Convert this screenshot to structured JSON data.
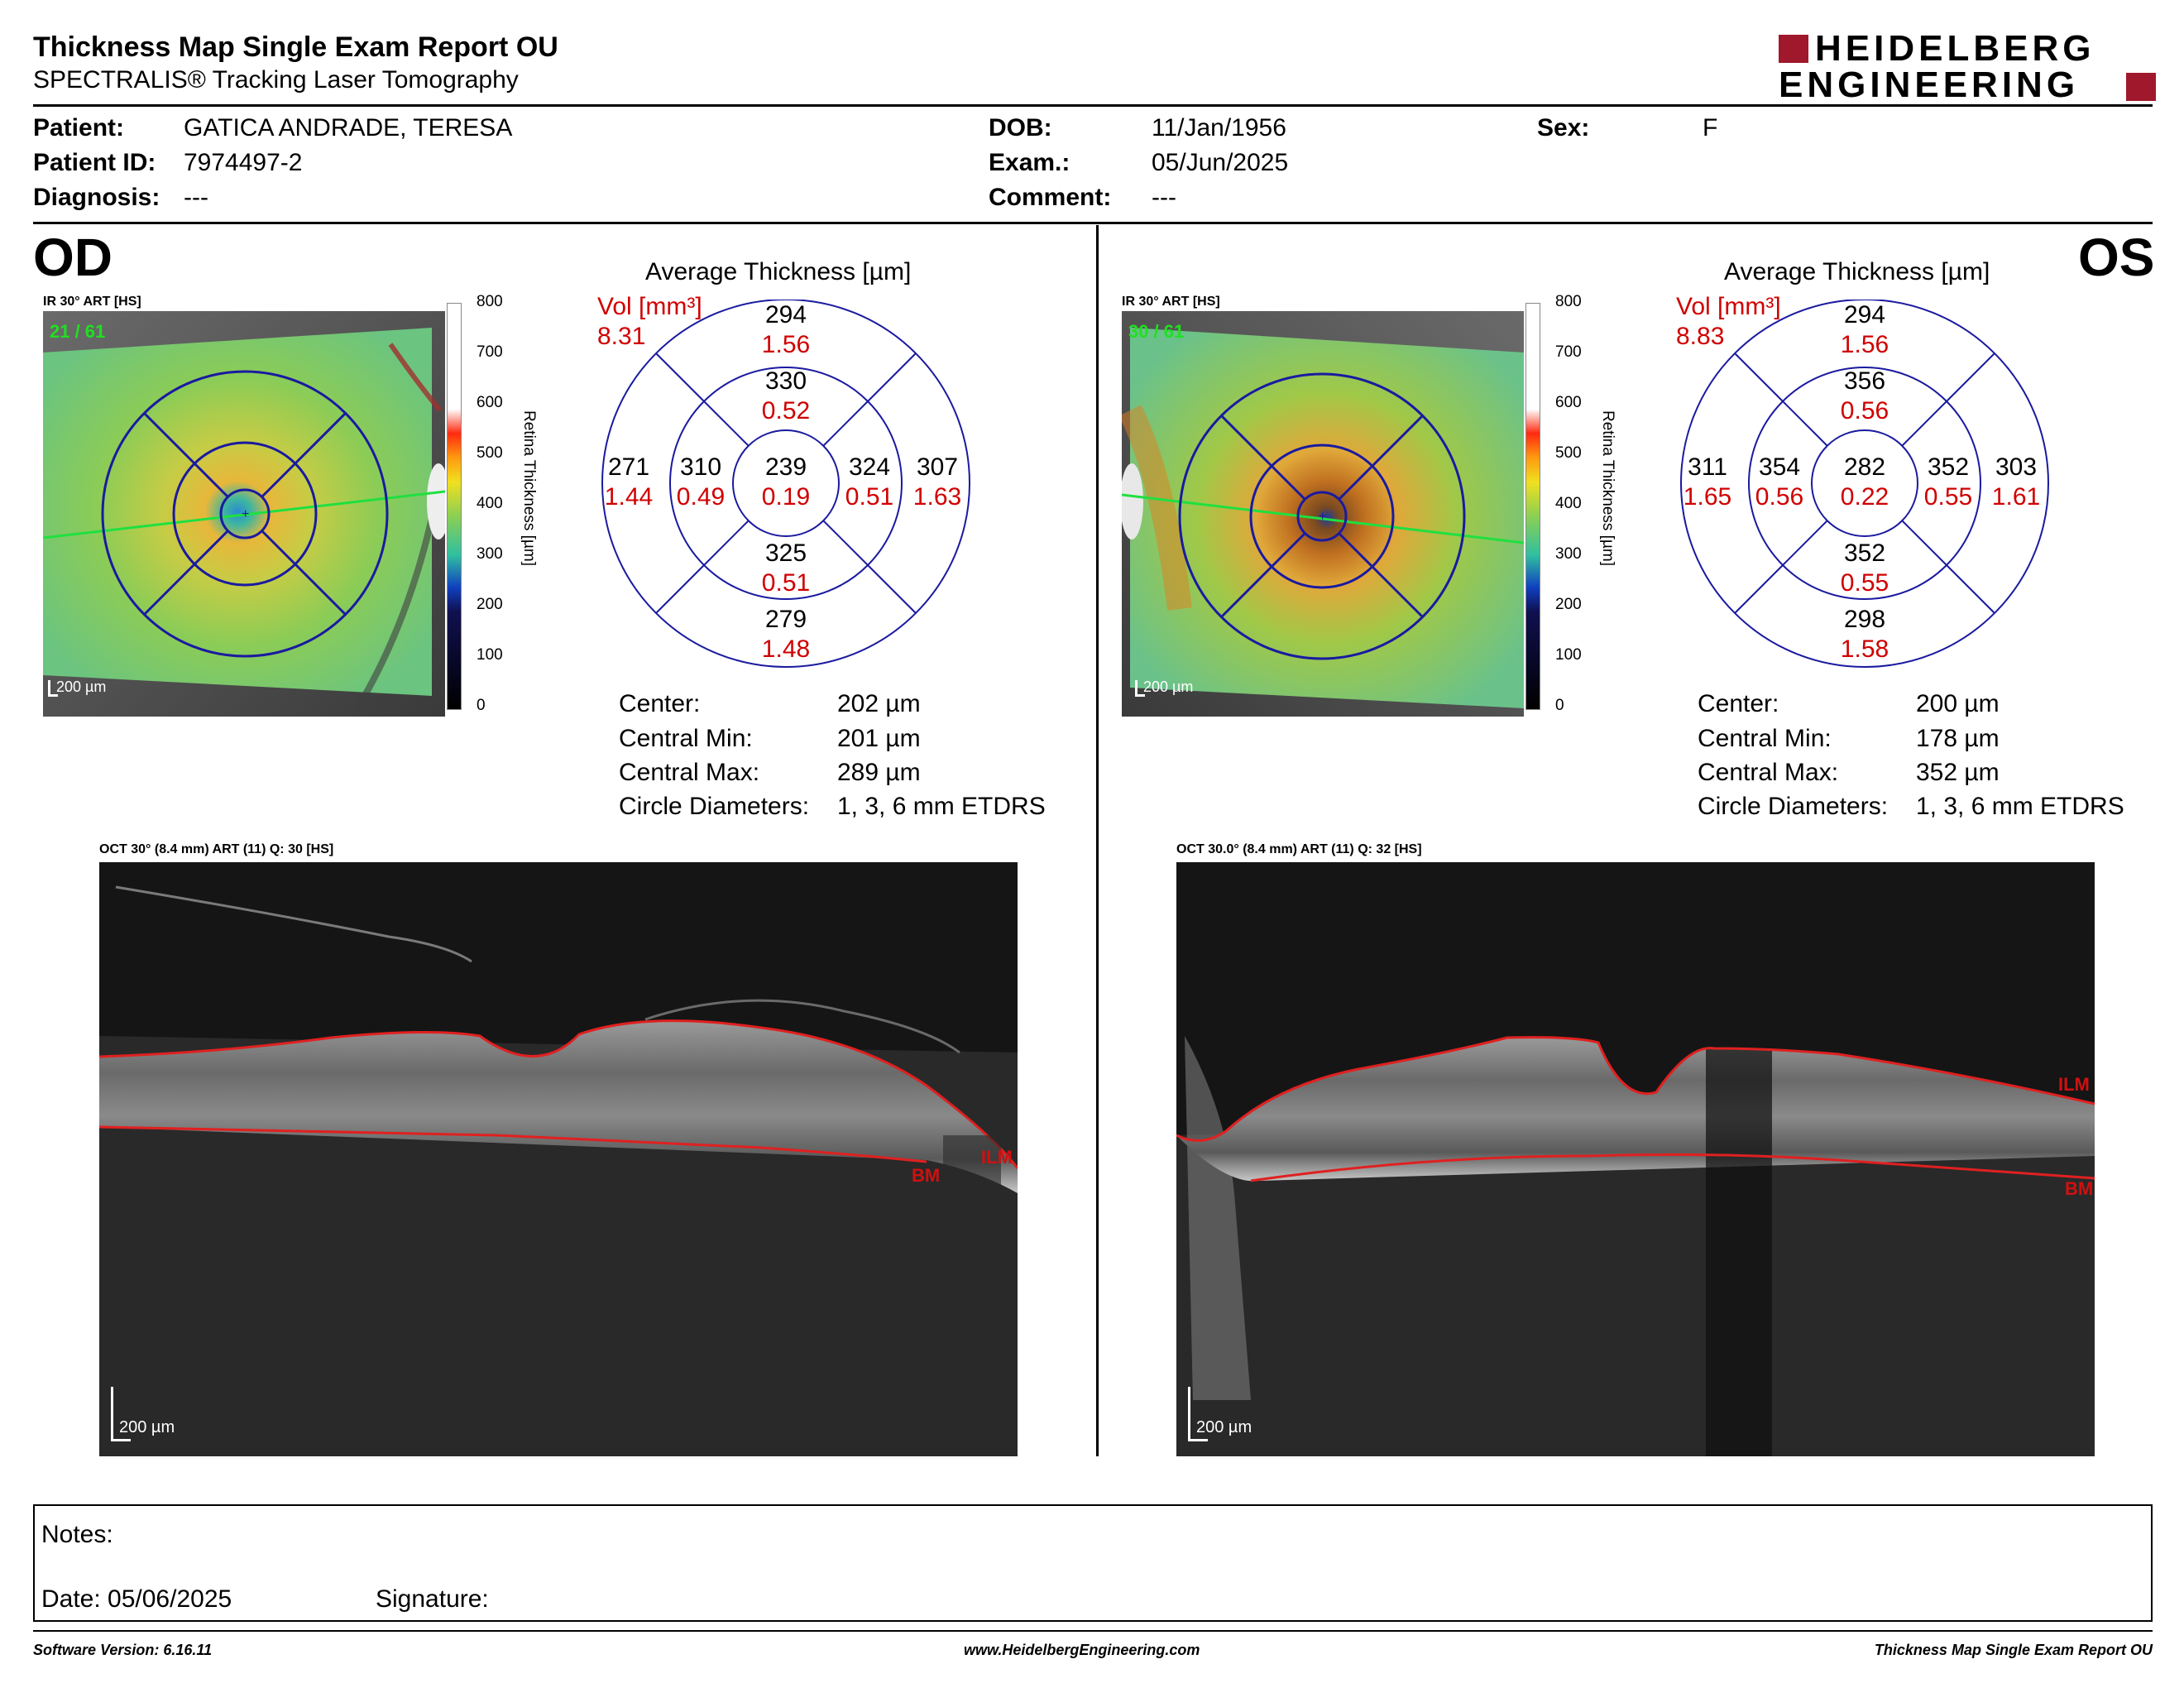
{
  "header": {
    "title": "Thickness Map Single Exam Report OU",
    "subtitle": "SPECTRALIS® Tracking Laser Tomography",
    "logo_line1": "HEIDELBERG",
    "logo_line2": "ENGINEERING"
  },
  "patient": {
    "patient_label": "Patient:",
    "patient_value": "GATICA ANDRADE, TERESA",
    "id_label": "Patient ID:",
    "id_value": "7974497-2",
    "diagnosis_label": "Diagnosis:",
    "diagnosis_value": "---",
    "dob_label": "DOB:",
    "dob_value": "11/Jan/1956",
    "exam_label": "Exam.:",
    "exam_value": "05/Jun/2025",
    "comment_label": "Comment:",
    "comment_value": "---",
    "sex_label": "Sex:",
    "sex_value": "F"
  },
  "colorbar": {
    "ticks": [
      "800",
      "700",
      "600",
      "500",
      "400",
      "300",
      "200",
      "100",
      "0"
    ],
    "label": "Retina Thickness [µm]"
  },
  "od": {
    "eye_label": "OD",
    "ir_label": "IR 30° ART [HS]",
    "ir_count": "21 / 61",
    "ir_scale": "200 µm",
    "avg_title": "Average Thickness [µm]",
    "vol_label": "Vol [mm³]",
    "vol_value": "8.31",
    "sectors": {
      "outer_sup": {
        "t": "294",
        "v": "1.56"
      },
      "inner_sup": {
        "t": "330",
        "v": "0.52"
      },
      "outer_temp": {
        "t": "271",
        "v": "1.44"
      },
      "inner_temp": {
        "t": "310",
        "v": "0.49"
      },
      "center": {
        "t": "239",
        "v": "0.19"
      },
      "inner_nas": {
        "t": "324",
        "v": "0.51"
      },
      "outer_nas": {
        "t": "307",
        "v": "1.63"
      },
      "inner_inf": {
        "t": "325",
        "v": "0.51"
      },
      "outer_inf": {
        "t": "279",
        "v": "1.48"
      }
    },
    "stats": {
      "center_label": "Center:",
      "center_value": "202 µm",
      "min_label": "Central Min:",
      "min_value": "201 µm",
      "max_label": "Central Max:",
      "max_value": "289 µm",
      "diam_label": "Circle Diameters:",
      "diam_value": "1, 3, 6 mm ETDRS"
    },
    "oct_label": "OCT 30° (8.4 mm) ART (11) Q: 30 [HS]",
    "oct_scale": "200 µm",
    "ilm": "ILM",
    "bm": "BM"
  },
  "os": {
    "eye_label": "OS",
    "ir_label": "IR 30° ART [HS]",
    "ir_count": "30 / 61",
    "ir_scale": "200 µm",
    "avg_title": "Average Thickness [µm]",
    "vol_label": "Vol [mm³]",
    "vol_value": "8.83",
    "sectors": {
      "outer_sup": {
        "t": "294",
        "v": "1.56"
      },
      "inner_sup": {
        "t": "356",
        "v": "0.56"
      },
      "outer_temp": {
        "t": "311",
        "v": "1.65"
      },
      "inner_temp": {
        "t": "354",
        "v": "0.56"
      },
      "center": {
        "t": "282",
        "v": "0.22"
      },
      "inner_nas": {
        "t": "352",
        "v": "0.55"
      },
      "outer_nas": {
        "t": "303",
        "v": "1.61"
      },
      "inner_inf": {
        "t": "352",
        "v": "0.55"
      },
      "outer_inf": {
        "t": "298",
        "v": "1.58"
      }
    },
    "stats": {
      "center_label": "Center:",
      "center_value": "200 µm",
      "min_label": "Central Min:",
      "min_value": "178 µm",
      "max_label": "Central Max:",
      "max_value": "352 µm",
      "diam_label": "Circle Diameters:",
      "diam_value": "1, 3, 6 mm ETDRS"
    },
    "oct_label": "OCT 30.0° (8.4 mm) ART (11) Q: 32 [HS]",
    "oct_scale": "200 µm",
    "ilm": "ILM",
    "bm": "BM"
  },
  "notes": {
    "notes_label": "Notes:",
    "date_label": "Date: 05/06/2025",
    "signature_label": "Signature:"
  },
  "footer": {
    "left": "Software Version: 6.16.11",
    "center": "www.HeidelbergEngineering.com",
    "right": "Thickness Map Single Exam Report OU"
  },
  "colors": {
    "sector_value": "#d00000",
    "logo_red": "#a0182b",
    "grid_blue": "#1a1aa0"
  }
}
